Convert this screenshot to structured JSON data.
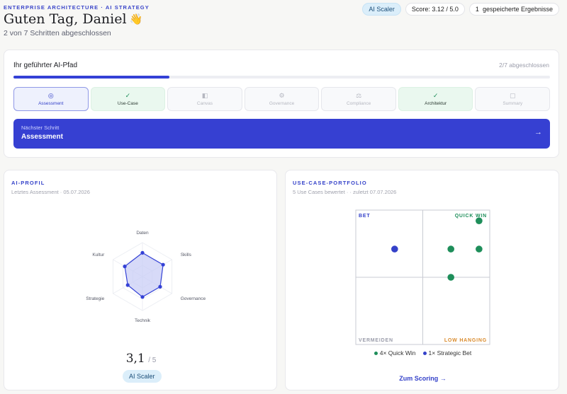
{
  "header": {
    "eyebrow": "ENTERPRISE ARCHITECTURE · AI STRATEGY",
    "greeting": "Guten Tag, Daniel",
    "greeting_emoji": "👋",
    "progress_text": "2 von 7 Schritten abgeschlossen",
    "pills": {
      "scaler": "AI Scaler",
      "score": "Score: 3.12 / 5.0",
      "saved_count": "1",
      "saved_label": "gespeicherte Ergebnisse"
    }
  },
  "path": {
    "title": "Ihr geführter AI-Pfad",
    "count": "2/7 abgeschlossen",
    "progress_fraction": 0.29,
    "steps": [
      {
        "label": "Assessment",
        "state": "active",
        "icon": "target-icon"
      },
      {
        "label": "Use-Case",
        "state": "done",
        "icon": "check-icon"
      },
      {
        "label": "Canvas",
        "state": "locked",
        "icon": "canvas-icon"
      },
      {
        "label": "Governance",
        "state": "locked",
        "icon": "gear-icon"
      },
      {
        "label": "Compliance",
        "state": "locked",
        "icon": "scale-icon"
      },
      {
        "label": "Architektur",
        "state": "done",
        "icon": "check-icon"
      },
      {
        "label": "Summary",
        "state": "locked",
        "icon": "square-icon"
      }
    ],
    "next": {
      "label": "Nächster Schritt",
      "value": "Assessment"
    }
  },
  "ai_profile": {
    "title": "AI-PROFIL",
    "subtitle": "Letztes Assessment · 05.07.2026",
    "axes": [
      "Daten",
      "Skills",
      "Governance",
      "Technik",
      "Strategie",
      "Kultur"
    ],
    "values": [
      3.5,
      3.5,
      3.0,
      3.0,
      2.5,
      3.0
    ],
    "max": 5,
    "score": "3,1",
    "score_max": "/ 5",
    "badge": "AI Scaler",
    "colors": {
      "accent": "#3441d6",
      "fill": "#c9cdf5"
    }
  },
  "portfolio": {
    "title": "USE-CASE-PORTFOLIO",
    "subtitle": "5 Use Cases bewertet · · zuletzt 07.07.2026",
    "quadrants": {
      "top_left": "BET",
      "top_right": "QUICK WIN",
      "bottom_left": "VERMEIDEN",
      "bottom_right": "LOW HANGING"
    },
    "chart_data": {
      "type": "scatter",
      "xlim": [
        0,
        1
      ],
      "ylim": [
        0,
        1
      ],
      "series": [
        {
          "name": "Quick Win",
          "color": "#1e8e5a",
          "points": [
            [
              0.92,
              0.92
            ],
            [
              0.71,
              0.71
            ],
            [
              0.92,
              0.71
            ],
            [
              0.71,
              0.5
            ]
          ]
        },
        {
          "name": "Strategic Bet",
          "color": "#3441c9",
          "points": [
            [
              0.29,
              0.71
            ]
          ]
        }
      ]
    },
    "legend": [
      {
        "text": "4× Quick Win",
        "color": "#1e8e5a"
      },
      {
        "text": "1× Strategic Bet",
        "color": "#3441c9"
      }
    ],
    "link": "Zum Scoring →"
  }
}
